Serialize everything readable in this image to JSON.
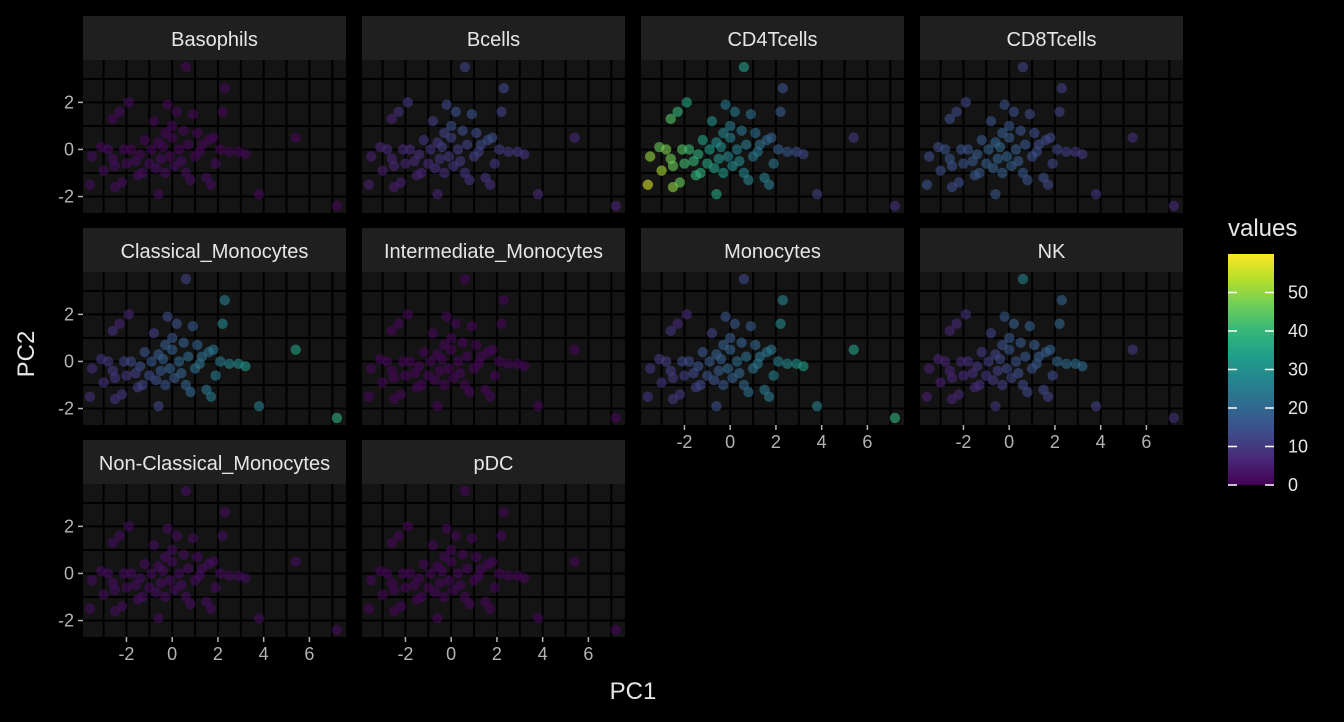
{
  "chart_data": {
    "type": "scatter",
    "faceted": true,
    "facet_layout": "4 columns, 3 rows",
    "xlabel": "PC1",
    "ylabel": "PC2",
    "xlim": [
      -3.9,
      7.6
    ],
    "ylim": [
      -2.7,
      3.8
    ],
    "x_ticks": [
      -2,
      0,
      2,
      4,
      6
    ],
    "y_ticks": [
      -2,
      0,
      2
    ],
    "x_tick_labels": [
      "-2",
      "0",
      "2",
      "4",
      "6"
    ],
    "y_tick_labels": [
      "-2",
      "0",
      "2"
    ],
    "grid": true,
    "theme": "dark",
    "legend": {
      "title": "values",
      "position": "right",
      "type": "colorbar",
      "colormap": "viridis",
      "range": [
        0,
        60
      ],
      "ticks": [
        0,
        10,
        20,
        30,
        40,
        50
      ],
      "tick_labels": [
        "0",
        "10",
        "20",
        "30",
        "40",
        "50"
      ]
    },
    "points": [
      [
        -3.6,
        -1.5
      ],
      [
        -3.5,
        -0.3
      ],
      [
        -3.1,
        0.1
      ],
      [
        -3.0,
        -0.9
      ],
      [
        -2.8,
        0.0
      ],
      [
        -2.6,
        -0.4
      ],
      [
        -2.6,
        1.3
      ],
      [
        -2.5,
        -1.6
      ],
      [
        -2.5,
        -0.7
      ],
      [
        -2.2,
        -1.4
      ],
      [
        -2.3,
        1.6
      ],
      [
        -2.1,
        0.0
      ],
      [
        -2.0,
        -0.6
      ],
      [
        -1.9,
        2.0
      ],
      [
        -1.8,
        0.0
      ],
      [
        -1.6,
        -0.5
      ],
      [
        -1.5,
        -1.1
      ],
      [
        -1.4,
        -0.2
      ],
      [
        -1.3,
        -1.0
      ],
      [
        -1.2,
        0.4
      ],
      [
        -1.0,
        -0.6
      ],
      [
        -0.9,
        0.0
      ],
      [
        -0.8,
        1.2
      ],
      [
        -0.7,
        -0.8
      ],
      [
        -0.6,
        -1.9
      ],
      [
        -0.6,
        0.3
      ],
      [
        -0.5,
        -0.4
      ],
      [
        -0.4,
        0.1
      ],
      [
        -0.3,
        0.7
      ],
      [
        -0.3,
        -1.0
      ],
      [
        -0.2,
        1.9
      ],
      [
        -0.1,
        -0.3
      ],
      [
        0.0,
        1.0
      ],
      [
        0.0,
        0.5
      ],
      [
        0.1,
        -0.7
      ],
      [
        0.2,
        1.6
      ],
      [
        0.3,
        0.0
      ],
      [
        0.4,
        -0.5
      ],
      [
        0.5,
        0.8
      ],
      [
        0.6,
        -1.0
      ],
      [
        0.6,
        3.5
      ],
      [
        0.7,
        0.2
      ],
      [
        0.8,
        -1.3
      ],
      [
        0.9,
        1.5
      ],
      [
        1.0,
        -0.3
      ],
      [
        1.1,
        0.7
      ],
      [
        1.2,
        -0.1
      ],
      [
        1.3,
        0.2
      ],
      [
        1.5,
        -1.2
      ],
      [
        1.6,
        0.4
      ],
      [
        1.7,
        -1.5
      ],
      [
        1.8,
        0.5
      ],
      [
        1.9,
        -0.6
      ],
      [
        2.1,
        0.0
      ],
      [
        2.2,
        1.6
      ],
      [
        2.3,
        2.6
      ],
      [
        2.5,
        -0.1
      ],
      [
        2.9,
        -0.1
      ],
      [
        3.2,
        -0.2
      ],
      [
        3.8,
        -1.9
      ],
      [
        5.4,
        0.5
      ],
      [
        7.2,
        -2.4
      ]
    ],
    "series": [
      {
        "name": "Basophils",
        "values": [
          2,
          2,
          1,
          2,
          2,
          2,
          1,
          2,
          2,
          2,
          2,
          1,
          2,
          2,
          1,
          2,
          2,
          1,
          2,
          1,
          2,
          1,
          1,
          2,
          2,
          1,
          2,
          1,
          1,
          2,
          1,
          1,
          1,
          1,
          2,
          1,
          1,
          2,
          1,
          2,
          1,
          1,
          2,
          1,
          1,
          1,
          1,
          1,
          2,
          1,
          2,
          1,
          2,
          1,
          1,
          1,
          1,
          1,
          1,
          1,
          1,
          1
        ]
      },
      {
        "name": "Bcells",
        "values": [
          5,
          5,
          6,
          5,
          7,
          6,
          6,
          5,
          6,
          5,
          8,
          7,
          6,
          10,
          7,
          7,
          6,
          8,
          6,
          9,
          7,
          9,
          11,
          8,
          6,
          10,
          9,
          11,
          12,
          8,
          13,
          10,
          14,
          12,
          9,
          15,
          11,
          10,
          14,
          9,
          12,
          12,
          9,
          15,
          11,
          14,
          12,
          13,
          9,
          14,
          8,
          14,
          9,
          11,
          12,
          13,
          10,
          10,
          9,
          7,
          7,
          6
        ]
      },
      {
        "name": "CD4Tcells",
        "values": [
          56,
          50,
          46,
          52,
          48,
          47,
          44,
          50,
          46,
          46,
          40,
          44,
          42,
          36,
          41,
          40,
          40,
          38,
          38,
          34,
          36,
          33,
          30,
          34,
          36,
          30,
          31,
          29,
          27,
          32,
          24,
          28,
          25,
          26,
          30,
          24,
          26,
          28,
          23,
          28,
          34,
          25,
          27,
          22,
          24,
          21,
          23,
          22,
          26,
          20,
          25,
          19,
          23,
          18,
          17,
          15,
          16,
          14,
          13,
          12,
          10,
          8
        ]
      },
      {
        "name": "CD8Tcells",
        "values": [
          15,
          14,
          14,
          14,
          15,
          15,
          14,
          14,
          15,
          14,
          13,
          15,
          15,
          13,
          15,
          16,
          16,
          17,
          16,
          17,
          18,
          19,
          15,
          18,
          16,
          19,
          19,
          20,
          17,
          18,
          15,
          19,
          16,
          17,
          17,
          14,
          18,
          17,
          15,
          16,
          12,
          16,
          15,
          14,
          15,
          14,
          14,
          14,
          14,
          13,
          13,
          13,
          13,
          12,
          12,
          11,
          11,
          10,
          10,
          9,
          8,
          7
        ]
      },
      {
        "name": "Classical_Monocytes",
        "values": [
          8,
          8,
          9,
          8,
          10,
          10,
          8,
          9,
          9,
          9,
          6,
          12,
          10,
          6,
          13,
          12,
          11,
          14,
          12,
          15,
          14,
          16,
          11,
          14,
          13,
          17,
          16,
          18,
          17,
          15,
          14,
          19,
          16,
          18,
          17,
          15,
          20,
          19,
          18,
          19,
          12,
          21,
          20,
          16,
          22,
          19,
          23,
          22,
          23,
          22,
          24,
          23,
          25,
          25,
          28,
          26,
          28,
          30,
          32,
          26,
          34,
          38
        ]
      },
      {
        "name": "Intermediate_Monocytes",
        "values": [
          1,
          1,
          1,
          1,
          1,
          1,
          1,
          1,
          1,
          1,
          1,
          1,
          1,
          1,
          1,
          1,
          1,
          1,
          1,
          1,
          1,
          1,
          1,
          1,
          1,
          1,
          1,
          1,
          1,
          1,
          1,
          1,
          1,
          1,
          1,
          1,
          1,
          1,
          1,
          1,
          1,
          1,
          1,
          1,
          1,
          1,
          1,
          1,
          1,
          1,
          1,
          1,
          1,
          1,
          1,
          1,
          1,
          1,
          1,
          1,
          1,
          1
        ]
      },
      {
        "name": "Monocytes",
        "values": [
          9,
          9,
          10,
          9,
          11,
          11,
          9,
          10,
          10,
          10,
          7,
          13,
          11,
          7,
          14,
          13,
          12,
          15,
          13,
          16,
          15,
          17,
          12,
          15,
          14,
          18,
          17,
          19,
          18,
          16,
          15,
          20,
          17,
          19,
          18,
          16,
          21,
          20,
          19,
          20,
          13,
          22,
          21,
          17,
          23,
          20,
          24,
          23,
          24,
          23,
          25,
          24,
          26,
          26,
          29,
          27,
          29,
          31,
          33,
          27,
          35,
          39
        ]
      },
      {
        "name": "NK",
        "values": [
          5,
          5,
          6,
          5,
          6,
          6,
          6,
          6,
          6,
          6,
          7,
          7,
          7,
          8,
          8,
          8,
          7,
          9,
          8,
          10,
          9,
          11,
          12,
          10,
          9,
          12,
          11,
          13,
          14,
          11,
          16,
          13,
          17,
          15,
          12,
          18,
          15,
          14,
          17,
          13,
          26,
          16,
          13,
          19,
          15,
          18,
          16,
          17,
          13,
          18,
          12,
          19,
          14,
          20,
          20,
          19,
          21,
          22,
          21,
          12,
          10,
          8
        ]
      },
      {
        "name": "Non-Classical_Monocytes",
        "values": [
          2,
          2,
          2,
          2,
          2,
          2,
          2,
          2,
          2,
          2,
          2,
          2,
          2,
          2,
          2,
          2,
          2,
          2,
          2,
          2,
          2,
          2,
          2,
          2,
          2,
          2,
          2,
          2,
          2,
          2,
          2,
          2,
          2,
          2,
          2,
          2,
          2,
          2,
          2,
          2,
          2,
          2,
          2,
          2,
          2,
          2,
          2,
          2,
          2,
          2,
          2,
          2,
          2,
          2,
          2,
          2,
          2,
          2,
          2,
          2,
          2,
          2
        ]
      },
      {
        "name": "pDC",
        "values": [
          1,
          1,
          1,
          1,
          1,
          1,
          1,
          1,
          1,
          1,
          1,
          1,
          1,
          1,
          1,
          1,
          1,
          1,
          1,
          1,
          1,
          1,
          1,
          1,
          1,
          1,
          1,
          1,
          1,
          1,
          1,
          1,
          1,
          1,
          1,
          1,
          1,
          1,
          1,
          1,
          1,
          1,
          1,
          1,
          1,
          1,
          1,
          1,
          1,
          1,
          1,
          1,
          1,
          1,
          1,
          1,
          1,
          1,
          1,
          1,
          1,
          1
        ]
      }
    ]
  },
  "colors": {
    "background": "#000000",
    "panel_background": "#141414",
    "strip_background": "#1f1f1f",
    "grid_major": "#000000",
    "grid_minor": "#000000",
    "strip_text": "#e6e6e6",
    "tick_text": "#b3b3b3",
    "axis_title": "#e6e6e6"
  }
}
